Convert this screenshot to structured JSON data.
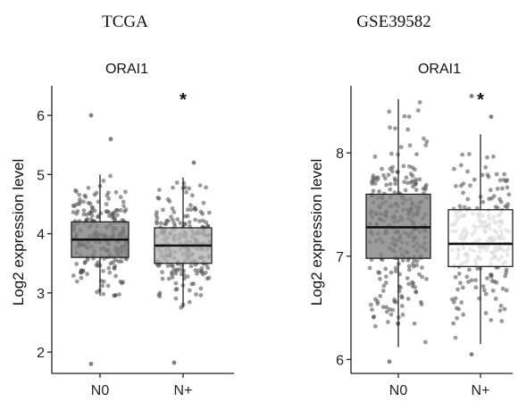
{
  "chart_data": [
    {
      "type": "box",
      "panel_title": "TCGA",
      "title": "ORAI1",
      "xlabel": "",
      "ylabel": "Log2 expression level",
      "ylim": [
        1.7,
        6.5
      ],
      "yticks": [
        2,
        3,
        4,
        5,
        6
      ],
      "grid": false,
      "categories": [
        "N0",
        "N+"
      ],
      "annotations": [
        {
          "category": "N+",
          "text": "*"
        }
      ],
      "series": [
        {
          "category": "N0",
          "fill": "#7f7f7f",
          "min": 2.95,
          "q1": 3.6,
          "median": 3.9,
          "q3": 4.2,
          "max": 5.0,
          "outliers": [
            1.8,
            5.6,
            6.0
          ],
          "n": 230
        },
        {
          "category": "N+",
          "fill": "#b3b3b3",
          "min": 2.75,
          "q1": 3.5,
          "median": 3.8,
          "q3": 4.1,
          "max": 4.95,
          "outliers": [
            1.82,
            5.2
          ],
          "n": 240
        }
      ]
    },
    {
      "type": "box",
      "panel_title": "GSE39582",
      "title": "ORAI1",
      "xlabel": "",
      "ylabel": "Log2 expression level",
      "ylim": [
        5.9,
        8.65
      ],
      "yticks": [
        6,
        7,
        8
      ],
      "grid": false,
      "categories": [
        "N0",
        "N+"
      ],
      "annotations": [
        {
          "category": "N+",
          "text": "*"
        }
      ],
      "series": [
        {
          "category": "N0",
          "fill": "#808080",
          "min": 6.12,
          "q1": 6.98,
          "median": 7.28,
          "q3": 7.6,
          "max": 8.52,
          "outliers": [
            5.98
          ],
          "n": 280
        },
        {
          "category": "N+",
          "fill": "#ffffff",
          "min": 6.15,
          "q1": 6.9,
          "median": 7.12,
          "q3": 7.45,
          "max": 8.18,
          "outliers": [
            6.05,
            8.35,
            8.55
          ],
          "n": 230
        }
      ]
    }
  ]
}
